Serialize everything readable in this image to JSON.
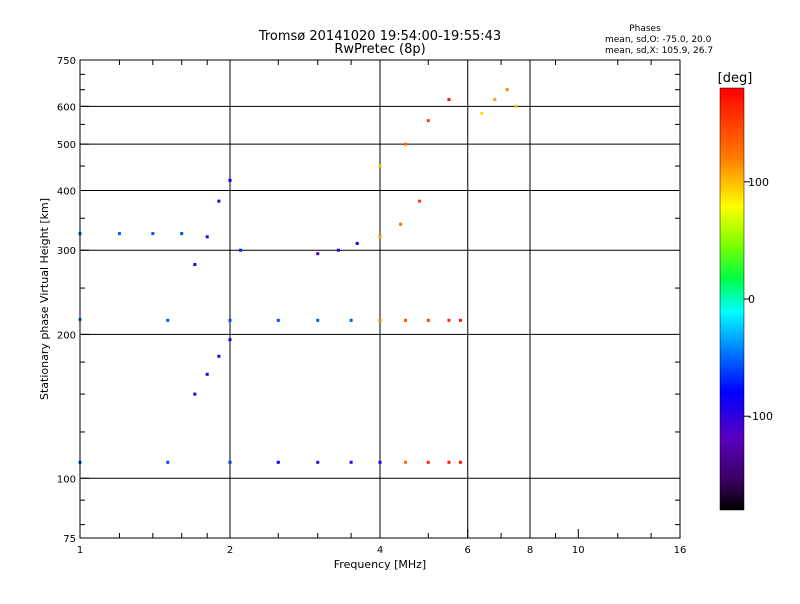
{
  "chart_data": {
    "type": "scatter",
    "title": "Tromsø 20141020 19:54:00-19:55:43",
    "subtitle": "RwPretec (8p)",
    "xlabel": "Frequency [MHz]",
    "ylabel": "Stationary phase Virtual Height [km]",
    "x_scale": "log",
    "y_scale": "log",
    "xlim": [
      1,
      16
    ],
    "ylim": [
      75,
      750
    ],
    "x_ticks": [
      1,
      2,
      4,
      6,
      8,
      10,
      16
    ],
    "y_ticks": [
      75,
      100,
      200,
      300,
      400,
      500,
      600,
      750
    ],
    "x_gridlines": [
      2,
      4,
      6,
      8
    ],
    "y_gridlines": [
      100,
      200,
      300,
      400,
      500,
      600
    ],
    "grid": true,
    "phase_info": {
      "heading": "Phases",
      "line1": "mean, sd,O: -75.0, 20.0",
      "line2": "mean, sd,X: 105.9, 26.7"
    },
    "colorbar": {
      "label": "[deg]",
      "range": [
        -180,
        180
      ],
      "ticks": [
        100,
        0,
        -100
      ],
      "colormap": "rainbow (black → purple → blue → cyan → green → yellow → red)"
    },
    "series": [
      {
        "trace": "layer-110km",
        "x": [
          1.0,
          1.5,
          2.0,
          2.5,
          3.0,
          3.5,
          4.0,
          4.5,
          5.0,
          5.5,
          5.8
        ],
        "y": [
          108,
          108,
          108,
          108,
          108,
          108,
          108,
          108,
          108,
          108,
          108
        ],
        "phase": [
          -60,
          -60,
          -65,
          -80,
          -105,
          -110,
          -100,
          130,
          160,
          170,
          170
        ]
      },
      {
        "trace": "layer-215km",
        "x": [
          1.0,
          1.5,
          2.0,
          2.5,
          3.0,
          3.5,
          4.0,
          4.5,
          5.0,
          5.5,
          5.8
        ],
        "y": [
          215,
          214,
          214,
          214,
          214,
          214,
          214,
          214,
          214,
          214,
          214
        ],
        "phase": [
          -50,
          -55,
          -60,
          -60,
          -55,
          -55,
          120,
          140,
          150,
          160,
          170
        ]
      },
      {
        "trace": "layer-325km-low",
        "x": [
          1.0,
          1.2,
          1.4,
          1.6
        ],
        "y": [
          325,
          325,
          325,
          325
        ],
        "phase": [
          -55,
          -55,
          -58,
          -60
        ]
      },
      {
        "trace": "cluster-F-1.8MHz",
        "x": [
          1.7,
          1.8,
          1.9,
          2.0,
          2.1
        ],
        "y": [
          280,
          320,
          380,
          420,
          300
        ],
        "phase": [
          -90,
          -100,
          -95,
          -80,
          -70
        ]
      },
      {
        "trace": "cusp-3-4MHz",
        "x": [
          3.0,
          3.3,
          3.6,
          4.0,
          4.4,
          4.8
        ],
        "y": [
          295,
          300,
          310,
          320,
          340,
          380
        ],
        "phase": [
          -110,
          -100,
          -90,
          110,
          130,
          150
        ]
      },
      {
        "trace": "cluster-E-1.9MHz",
        "x": [
          1.7,
          1.8,
          1.9,
          2.0
        ],
        "y": [
          150,
          165,
          180,
          195
        ],
        "phase": [
          -85,
          -95,
          -100,
          -90
        ]
      },
      {
        "trace": "upper-5MHz",
        "x": [
          4.0,
          4.5,
          5.0,
          5.5
        ],
        "y": [
          450,
          500,
          560,
          620
        ],
        "phase": [
          100,
          130,
          150,
          170
        ]
      },
      {
        "trace": "upper-7MHz",
        "x": [
          6.4,
          6.8,
          7.2,
          7.5
        ],
        "y": [
          580,
          620,
          650,
          600
        ],
        "phase": [
          90,
          110,
          120,
          100
        ]
      }
    ]
  }
}
